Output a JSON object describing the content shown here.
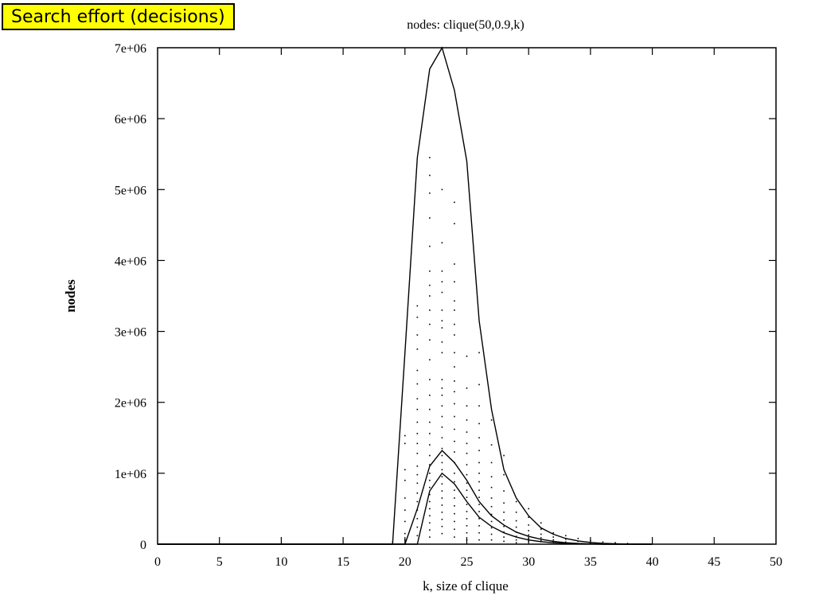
{
  "banner": {
    "text": "Search effort (decisions)"
  },
  "chart_data": {
    "type": "line",
    "title": "nodes: clique(50,0.9,k)",
    "xlabel": "k, size of clique",
    "ylabel": "nodes",
    "xlim": [
      0,
      50
    ],
    "ylim": [
      0,
      7000000
    ],
    "x_ticks": [
      "0",
      "5",
      "10",
      "15",
      "20",
      "25",
      "30",
      "35",
      "40",
      "45",
      "50"
    ],
    "x_tick_values": [
      0,
      5,
      10,
      15,
      20,
      25,
      30,
      35,
      40,
      45,
      50
    ],
    "y_ticks": [
      "0",
      "1e+06",
      "2e+06",
      "3e+06",
      "4e+06",
      "5e+06",
      "6e+06",
      "7e+06"
    ],
    "y_tick_values": [
      0,
      1000000,
      2000000,
      3000000,
      4000000,
      5000000,
      6000000,
      7000000
    ],
    "series": [
      {
        "x": [
          0,
          19,
          20,
          21,
          22,
          23,
          24,
          25,
          26,
          27,
          28,
          29,
          30,
          31,
          32,
          33,
          34,
          35,
          36,
          38,
          40
        ],
        "values": [
          0,
          0,
          2700000,
          5450000,
          6700000,
          7000000,
          6400000,
          5400000,
          3150000,
          1900000,
          1050000,
          650000,
          400000,
          230000,
          140000,
          80000,
          45000,
          25000,
          12000,
          0,
          0
        ]
      },
      {
        "x": [
          0,
          20,
          21,
          22,
          23,
          24,
          25,
          26,
          27,
          28,
          29,
          30,
          31,
          32,
          33,
          34,
          35,
          36,
          38,
          40
        ],
        "values": [
          0,
          0,
          500000,
          1100000,
          1320000,
          1150000,
          900000,
          600000,
          400000,
          270000,
          170000,
          110000,
          70000,
          40000,
          20000,
          10000,
          5000,
          0,
          0,
          0
        ]
      },
      {
        "x": [
          0,
          21,
          22,
          23,
          24,
          25,
          26,
          27,
          28,
          29,
          30,
          31,
          32,
          33,
          34,
          35,
          36,
          40
        ],
        "values": [
          0,
          0,
          750000,
          1000000,
          850000,
          600000,
          380000,
          250000,
          160000,
          100000,
          60000,
          35000,
          20000,
          10000,
          5000,
          2000,
          0,
          0
        ]
      }
    ],
    "scatter_points": [
      [
        19,
        30000
      ],
      [
        20,
        1530000
      ],
      [
        20,
        1420000
      ],
      [
        20,
        1050000
      ],
      [
        20,
        900000
      ],
      [
        20,
        650000
      ],
      [
        20,
        480000
      ],
      [
        20,
        320000
      ],
      [
        20,
        150000
      ],
      [
        20,
        60000
      ],
      [
        21,
        3360000
      ],
      [
        21,
        3200000
      ],
      [
        21,
        2950000
      ],
      [
        21,
        2750000
      ],
      [
        21,
        2450000
      ],
      [
        21,
        2260000
      ],
      [
        21,
        2050000
      ],
      [
        21,
        1900000
      ],
      [
        21,
        1720000
      ],
      [
        21,
        1560000
      ],
      [
        21,
        1420000
      ],
      [
        21,
        1280000
      ],
      [
        21,
        1100000
      ],
      [
        21,
        980000
      ],
      [
        21,
        860000
      ],
      [
        21,
        720000
      ],
      [
        21,
        600000
      ],
      [
        21,
        480000
      ],
      [
        21,
        360000
      ],
      [
        21,
        240000
      ],
      [
        21,
        120000
      ],
      [
        22,
        5450000
      ],
      [
        22,
        5200000
      ],
      [
        22,
        4950000
      ],
      [
        22,
        4600000
      ],
      [
        22,
        4200000
      ],
      [
        22,
        3850000
      ],
      [
        22,
        3650000
      ],
      [
        22,
        3500000
      ],
      [
        22,
        3300000
      ],
      [
        22,
        3100000
      ],
      [
        22,
        2880000
      ],
      [
        22,
        2600000
      ],
      [
        22,
        2320000
      ],
      [
        22,
        2100000
      ],
      [
        22,
        1900000
      ],
      [
        22,
        1720000
      ],
      [
        22,
        1560000
      ],
      [
        22,
        1400000
      ],
      [
        22,
        1250000
      ],
      [
        22,
        1120000
      ],
      [
        22,
        1000000
      ],
      [
        22,
        900000
      ],
      [
        22,
        800000
      ],
      [
        22,
        700000
      ],
      [
        22,
        600000
      ],
      [
        22,
        500000
      ],
      [
        22,
        400000
      ],
      [
        22,
        300000
      ],
      [
        22,
        200000
      ],
      [
        22,
        100000
      ],
      [
        23,
        5000000
      ],
      [
        23,
        4250000
      ],
      [
        23,
        3850000
      ],
      [
        23,
        3700000
      ],
      [
        23,
        3550000
      ],
      [
        23,
        3300000
      ],
      [
        23,
        3150000
      ],
      [
        23,
        3050000
      ],
      [
        23,
        2850000
      ],
      [
        23,
        2700000
      ],
      [
        23,
        2320000
      ],
      [
        23,
        2200000
      ],
      [
        23,
        2100000
      ],
      [
        23,
        1950000
      ],
      [
        23,
        1800000
      ],
      [
        23,
        1650000
      ],
      [
        23,
        1500000
      ],
      [
        23,
        1350000
      ],
      [
        23,
        1250000
      ],
      [
        23,
        1150000
      ],
      [
        23,
        1050000
      ],
      [
        23,
        950000
      ],
      [
        23,
        850000
      ],
      [
        23,
        750000
      ],
      [
        23,
        650000
      ],
      [
        23,
        550000
      ],
      [
        23,
        450000
      ],
      [
        23,
        350000
      ],
      [
        23,
        250000
      ],
      [
        23,
        150000
      ],
      [
        24,
        4820000
      ],
      [
        24,
        4520000
      ],
      [
        24,
        3950000
      ],
      [
        24,
        3700000
      ],
      [
        24,
        3430000
      ],
      [
        24,
        3300000
      ],
      [
        24,
        3100000
      ],
      [
        24,
        2950000
      ],
      [
        24,
        2700000
      ],
      [
        24,
        2500000
      ],
      [
        24,
        2300000
      ],
      [
        24,
        2150000
      ],
      [
        24,
        1980000
      ],
      [
        24,
        1800000
      ],
      [
        24,
        1620000
      ],
      [
        24,
        1450000
      ],
      [
        24,
        1300000
      ],
      [
        24,
        1150000
      ],
      [
        24,
        1000000
      ],
      [
        24,
        880000
      ],
      [
        24,
        760000
      ],
      [
        24,
        650000
      ],
      [
        24,
        540000
      ],
      [
        24,
        430000
      ],
      [
        24,
        320000
      ],
      [
        24,
        210000
      ],
      [
        24,
        100000
      ],
      [
        25,
        2650000
      ],
      [
        25,
        2200000
      ],
      [
        25,
        1950000
      ],
      [
        25,
        1750000
      ],
      [
        25,
        1580000
      ],
      [
        25,
        1420000
      ],
      [
        25,
        1280000
      ],
      [
        25,
        1120000
      ],
      [
        25,
        980000
      ],
      [
        25,
        860000
      ],
      [
        25,
        760000
      ],
      [
        25,
        660000
      ],
      [
        25,
        560000
      ],
      [
        25,
        460000
      ],
      [
        25,
        360000
      ],
      [
        25,
        260000
      ],
      [
        25,
        160000
      ],
      [
        25,
        60000
      ],
      [
        26,
        2700000
      ],
      [
        26,
        2250000
      ],
      [
        26,
        1950000
      ],
      [
        26,
        1700000
      ],
      [
        26,
        1500000
      ],
      [
        26,
        1320000
      ],
      [
        26,
        1150000
      ],
      [
        26,
        1000000
      ],
      [
        26,
        880000
      ],
      [
        26,
        760000
      ],
      [
        26,
        660000
      ],
      [
        26,
        560000
      ],
      [
        26,
        460000
      ],
      [
        26,
        360000
      ],
      [
        26,
        260000
      ],
      [
        26,
        160000
      ],
      [
        26,
        60000
      ],
      [
        27,
        1750000
      ],
      [
        27,
        1400000
      ],
      [
        27,
        1150000
      ],
      [
        27,
        950000
      ],
      [
        27,
        800000
      ],
      [
        27,
        650000
      ],
      [
        27,
        530000
      ],
      [
        27,
        420000
      ],
      [
        27,
        320000
      ],
      [
        27,
        230000
      ],
      [
        27,
        140000
      ],
      [
        27,
        60000
      ],
      [
        28,
        1250000
      ],
      [
        28,
        980000
      ],
      [
        28,
        750000
      ],
      [
        28,
        580000
      ],
      [
        28,
        450000
      ],
      [
        28,
        340000
      ],
      [
        28,
        250000
      ],
      [
        28,
        170000
      ],
      [
        28,
        100000
      ],
      [
        28,
        40000
      ],
      [
        29,
        600000
      ],
      [
        29,
        450000
      ],
      [
        29,
        330000
      ],
      [
        29,
        240000
      ],
      [
        29,
        170000
      ],
      [
        29,
        110000
      ],
      [
        29,
        60000
      ],
      [
        29,
        20000
      ],
      [
        30,
        500000
      ],
      [
        30,
        380000
      ],
      [
        30,
        270000
      ],
      [
        30,
        190000
      ],
      [
        30,
        130000
      ],
      [
        30,
        80000
      ],
      [
        30,
        40000
      ],
      [
        31,
        300000
      ],
      [
        31,
        210000
      ],
      [
        31,
        140000
      ],
      [
        31,
        90000
      ],
      [
        31,
        50000
      ],
      [
        32,
        160000
      ],
      [
        32,
        100000
      ],
      [
        32,
        60000
      ],
      [
        32,
        30000
      ],
      [
        33,
        120000
      ],
      [
        33,
        70000
      ],
      [
        33,
        30000
      ],
      [
        34,
        80000
      ],
      [
        34,
        40000
      ],
      [
        35,
        50000
      ],
      [
        35,
        20000
      ],
      [
        36,
        30000
      ],
      [
        37,
        20000
      ],
      [
        38,
        10000
      ]
    ]
  }
}
